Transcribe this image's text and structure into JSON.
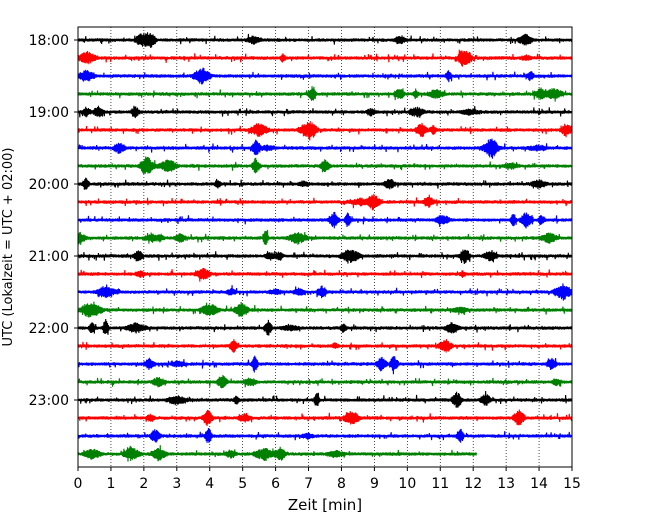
{
  "chart_data": {
    "type": "line",
    "title": "",
    "xlabel": "Zeit  [min]",
    "ylabel": "UTC (Lokalzeit = UTC + 02:00)",
    "xlim": [
      0,
      15
    ],
    "x_ticks": [
      "0",
      "1",
      "2",
      "3",
      "4",
      "5",
      "6",
      "7",
      "8",
      "9",
      "10",
      "11",
      "12",
      "13",
      "14",
      "15"
    ],
    "y_tick_labels": [
      "18:00",
      "19:00",
      "20:00",
      "21:00",
      "22:00",
      "23:00"
    ],
    "grid": "vertical dotted",
    "colors": [
      "#000000",
      "#ff0000",
      "#0000ff",
      "#008000"
    ],
    "series": [
      {
        "start": "18:00",
        "x_end": 15,
        "color": "#000000"
      },
      {
        "start": "18:15",
        "x_end": 15,
        "color": "#ff0000"
      },
      {
        "start": "18:30",
        "x_end": 15,
        "color": "#0000ff"
      },
      {
        "start": "18:45",
        "x_end": 15,
        "color": "#008000"
      },
      {
        "start": "19:00",
        "x_end": 15,
        "color": "#000000"
      },
      {
        "start": "19:15",
        "x_end": 15,
        "color": "#ff0000"
      },
      {
        "start": "19:30",
        "x_end": 15,
        "color": "#0000ff"
      },
      {
        "start": "19:45",
        "x_end": 15,
        "color": "#008000"
      },
      {
        "start": "20:00",
        "x_end": 15,
        "color": "#000000"
      },
      {
        "start": "20:15",
        "x_end": 15,
        "color": "#ff0000"
      },
      {
        "start": "20:30",
        "x_end": 15,
        "color": "#0000ff"
      },
      {
        "start": "20:45",
        "x_end": 15,
        "color": "#008000"
      },
      {
        "start": "21:00",
        "x_end": 15,
        "color": "#000000"
      },
      {
        "start": "21:15",
        "x_end": 15,
        "color": "#ff0000"
      },
      {
        "start": "21:30",
        "x_end": 15,
        "color": "#0000ff"
      },
      {
        "start": "21:45",
        "x_end": 15,
        "color": "#008000"
      },
      {
        "start": "22:00",
        "x_end": 15,
        "color": "#000000"
      },
      {
        "start": "22:15",
        "x_end": 15,
        "color": "#ff0000"
      },
      {
        "start": "22:30",
        "x_end": 15,
        "color": "#0000ff"
      },
      {
        "start": "22:45",
        "x_end": 15,
        "color": "#008000"
      },
      {
        "start": "23:00",
        "x_end": 15,
        "color": "#000000"
      },
      {
        "start": "23:15",
        "x_end": 15,
        "color": "#ff0000"
      },
      {
        "start": "23:30",
        "x_end": 15,
        "color": "#0000ff"
      },
      {
        "start": "23:45",
        "x_end": 12.1,
        "color": "#008000"
      }
    ]
  }
}
